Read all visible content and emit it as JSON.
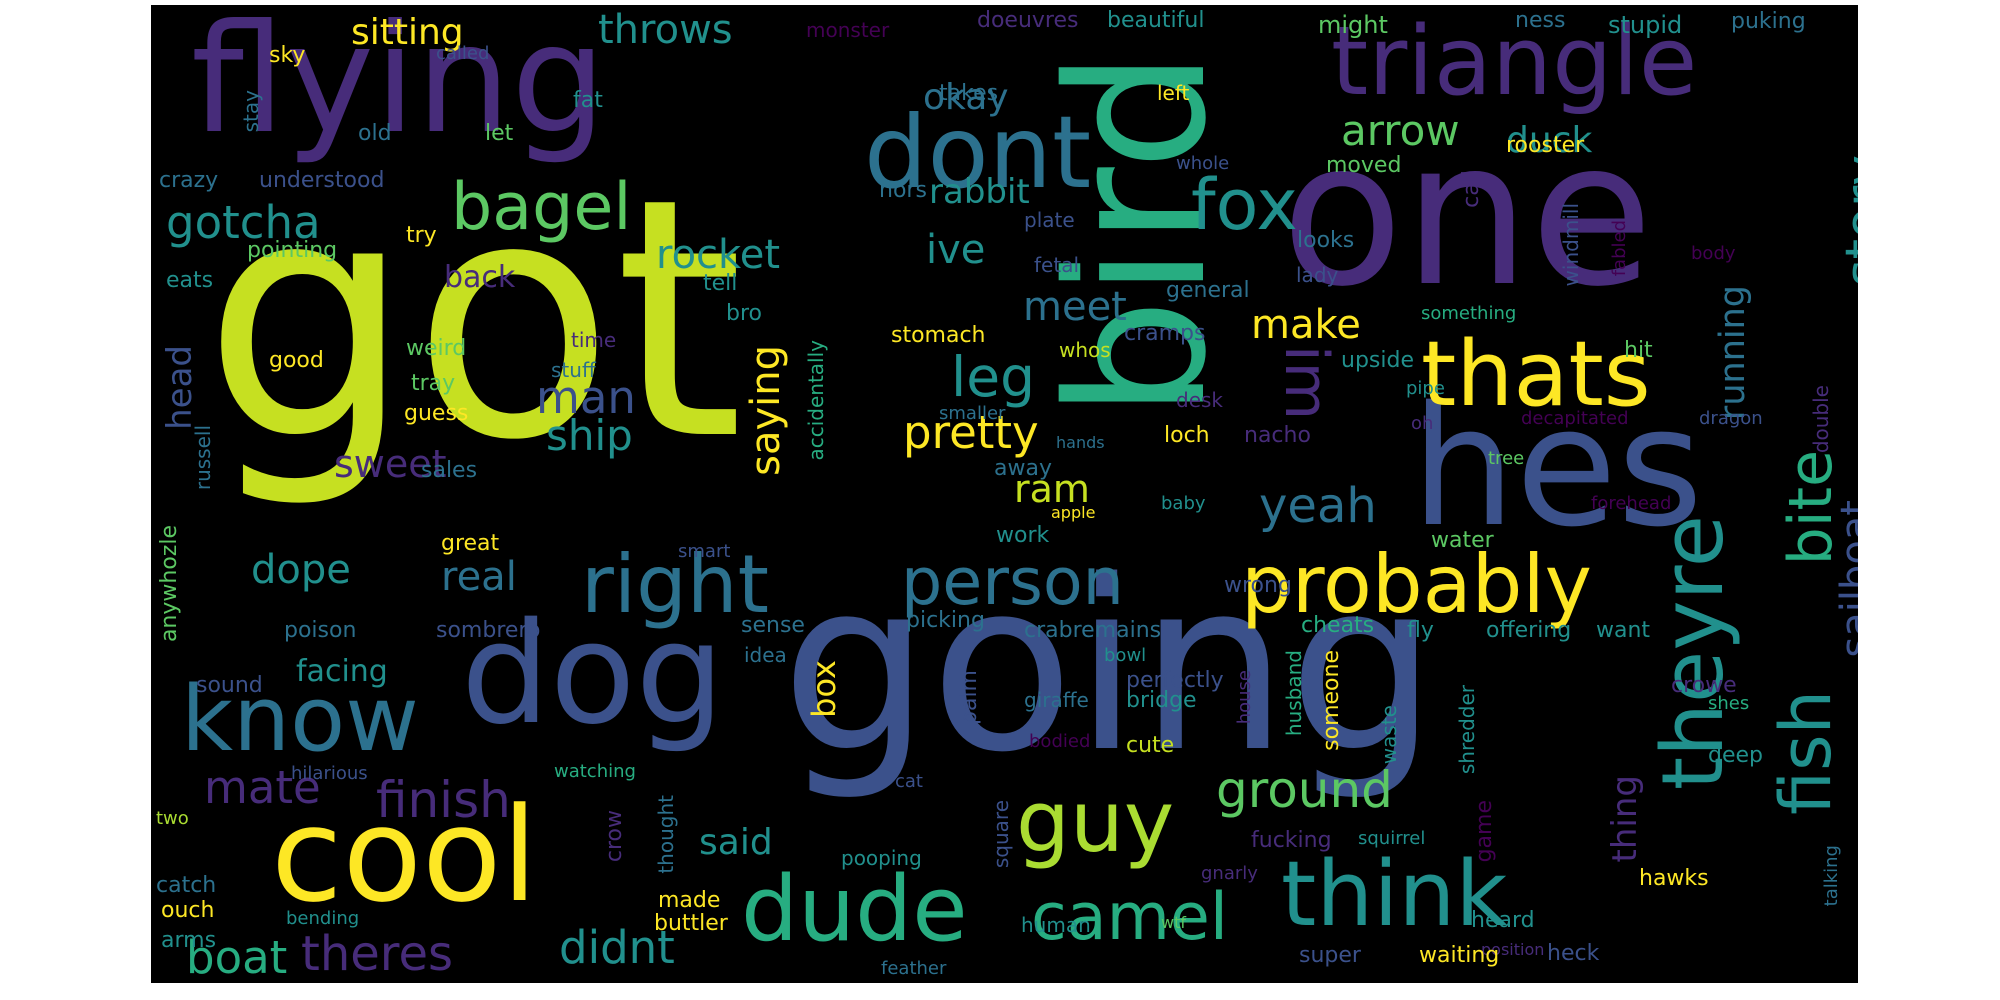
{
  "palette": {
    "v0": "#440154",
    "v1": "#472c7a",
    "v2": "#3b518b",
    "v3": "#2c718e",
    "v4": "#21908d",
    "v5": "#27ad81",
    "v6": "#5cc863",
    "v7": "#aadc32",
    "v8": "#c6e021",
    "v9": "#fde725"
  },
  "words": [
    {
      "text": "got",
      "color": "v8"
    },
    {
      "text": "going",
      "color": "v2"
    },
    {
      "text": "dog",
      "color": "v2"
    },
    {
      "text": "one",
      "color": "v1"
    },
    {
      "text": "flying",
      "color": "v1"
    },
    {
      "text": "bird",
      "color": "v5"
    },
    {
      "text": "hes",
      "color": "v2"
    },
    {
      "text": "cool",
      "color": "v9"
    },
    {
      "text": "triangle",
      "color": "v1"
    },
    {
      "text": "theyre",
      "color": "v4"
    },
    {
      "text": "dont",
      "color": "v3"
    },
    {
      "text": "think",
      "color": "v4"
    },
    {
      "text": "thats",
      "color": "v9"
    },
    {
      "text": "know",
      "color": "v3"
    },
    {
      "text": "dude",
      "color": "v5"
    },
    {
      "text": "probably",
      "color": "v9"
    },
    {
      "text": "right",
      "color": "v3"
    },
    {
      "text": "person",
      "color": "v3"
    },
    {
      "text": "guy",
      "color": "v7"
    },
    {
      "text": "fish",
      "color": "v4"
    },
    {
      "text": "bite",
      "color": "v5"
    },
    {
      "text": "camel",
      "color": "v5"
    },
    {
      "text": "bagel",
      "color": "v6"
    },
    {
      "text": "fox",
      "color": "v4"
    },
    {
      "text": "im",
      "color": "v1"
    },
    {
      "text": "ground",
      "color": "v6"
    },
    {
      "text": "finish",
      "color": "v1"
    },
    {
      "text": "mate",
      "color": "v1"
    },
    {
      "text": "theres",
      "color": "v1"
    },
    {
      "text": "boat",
      "color": "v5"
    },
    {
      "text": "didnt",
      "color": "v4"
    },
    {
      "text": "leg",
      "color": "v4"
    },
    {
      "text": "story",
      "color": "v4"
    },
    {
      "text": "sailboat",
      "color": "v2"
    },
    {
      "text": "yeah",
      "color": "v3"
    },
    {
      "text": "gotcha",
      "color": "v4"
    },
    {
      "text": "rocket",
      "color": "v4"
    },
    {
      "text": "arrow",
      "color": "v6"
    },
    {
      "text": "throws",
      "color": "v4"
    },
    {
      "text": "sitting",
      "color": "v9"
    },
    {
      "text": "okay",
      "color": "v3"
    },
    {
      "text": "ive",
      "color": "v4"
    },
    {
      "text": "meet",
      "color": "v3"
    },
    {
      "text": "make",
      "color": "v9"
    },
    {
      "text": "man",
      "color": "v2"
    },
    {
      "text": "ship",
      "color": "v4"
    },
    {
      "text": "pretty",
      "color": "v9"
    },
    {
      "text": "saying",
      "color": "v9"
    },
    {
      "text": "running",
      "color": "v3"
    },
    {
      "text": "duck",
      "color": "v4"
    },
    {
      "text": "rabbit",
      "color": "v4"
    },
    {
      "text": "sweet",
      "color": "v1"
    },
    {
      "text": "real",
      "color": "v3"
    },
    {
      "text": "dope",
      "color": "v4"
    },
    {
      "text": "ram",
      "color": "v8"
    },
    {
      "text": "said",
      "color": "v4"
    },
    {
      "text": "head",
      "color": "v2"
    },
    {
      "text": "box",
      "color": "v9"
    },
    {
      "text": "thing",
      "color": "v1"
    },
    {
      "text": "facing",
      "color": "v4"
    },
    {
      "text": "back",
      "color": "v1"
    },
    {
      "text": "monster",
      "color": "v0"
    },
    {
      "text": "doeuvres",
      "color": "v1"
    },
    {
      "text": "beautiful",
      "color": "v4"
    },
    {
      "text": "might",
      "color": "v6"
    },
    {
      "text": "ness",
      "color": "v3"
    },
    {
      "text": "stupid",
      "color": "v4"
    },
    {
      "text": "puking",
      "color": "v3"
    },
    {
      "text": "sky",
      "color": "v9"
    },
    {
      "text": "called",
      "color": "v2"
    },
    {
      "text": "stay",
      "color": "v3"
    },
    {
      "text": "fat",
      "color": "v4"
    },
    {
      "text": "old",
      "color": "v3"
    },
    {
      "text": "let",
      "color": "v6"
    },
    {
      "text": "takes",
      "color": "v3"
    },
    {
      "text": "left",
      "color": "v9"
    },
    {
      "text": "rooster",
      "color": "v9"
    },
    {
      "text": "moved",
      "color": "v6"
    },
    {
      "text": "whole",
      "color": "v2"
    },
    {
      "text": "crazy",
      "color": "v3"
    },
    {
      "text": "understood",
      "color": "v2"
    },
    {
      "text": "hors",
      "color": "v3"
    },
    {
      "text": "call",
      "color": "v1"
    },
    {
      "text": "windmill",
      "color": "v2"
    },
    {
      "text": "fabled",
      "color": "v0"
    },
    {
      "text": "body",
      "color": "v0"
    },
    {
      "text": "pointing",
      "color": "v6"
    },
    {
      "text": "try",
      "color": "v9"
    },
    {
      "text": "eats",
      "color": "v4"
    },
    {
      "text": "plate",
      "color": "v2"
    },
    {
      "text": "looks",
      "color": "v3"
    },
    {
      "text": "fetal",
      "color": "v2"
    },
    {
      "text": "lady",
      "color": "v2"
    },
    {
      "text": "tell",
      "color": "v4"
    },
    {
      "text": "bro",
      "color": "v4"
    },
    {
      "text": "general",
      "color": "v3"
    },
    {
      "text": "something",
      "color": "v5"
    },
    {
      "text": "time",
      "color": "v1"
    },
    {
      "text": "stomach",
      "color": "v9"
    },
    {
      "text": "whos",
      "color": "v8"
    },
    {
      "text": "cramps",
      "color": "v2"
    },
    {
      "text": "hit",
      "color": "v6"
    },
    {
      "text": "good",
      "color": "v9"
    },
    {
      "text": "weird",
      "color": "v6"
    },
    {
      "text": "stuff",
      "color": "v3"
    },
    {
      "text": "tray",
      "color": "v6"
    },
    {
      "text": "upside",
      "color": "v4"
    },
    {
      "text": "guess",
      "color": "v9"
    },
    {
      "text": "accidentally",
      "color": "v5"
    },
    {
      "text": "smaller",
      "color": "v3"
    },
    {
      "text": "desk",
      "color": "v1"
    },
    {
      "text": "pipe",
      "color": "v4"
    },
    {
      "text": "decapitated",
      "color": "v0"
    },
    {
      "text": "dragon",
      "color": "v2"
    },
    {
      "text": "russell",
      "color": "v3"
    },
    {
      "text": "nacho",
      "color": "v1"
    },
    {
      "text": "oh",
      "color": "v1"
    },
    {
      "text": "double",
      "color": "v1"
    },
    {
      "text": "loch",
      "color": "v9"
    },
    {
      "text": "tree",
      "color": "v6"
    },
    {
      "text": "hands",
      "color": "v3"
    },
    {
      "text": "away",
      "color": "v3"
    },
    {
      "text": "sales",
      "color": "v3"
    },
    {
      "text": "baby",
      "color": "v4"
    },
    {
      "text": "forehead",
      "color": "v0"
    },
    {
      "text": "apple",
      "color": "v9"
    },
    {
      "text": "water",
      "color": "v6"
    },
    {
      "text": "great",
      "color": "v9"
    },
    {
      "text": "anywhozle",
      "color": "v6"
    },
    {
      "text": "work",
      "color": "v4"
    },
    {
      "text": "smart",
      "color": "v2"
    },
    {
      "text": "wrong",
      "color": "v2"
    },
    {
      "text": "poison",
      "color": "v3"
    },
    {
      "text": "sombrero",
      "color": "v2"
    },
    {
      "text": "sense",
      "color": "v3"
    },
    {
      "text": "picking",
      "color": "v3"
    },
    {
      "text": "crabremains",
      "color": "v3"
    },
    {
      "text": "cheats",
      "color": "v5"
    },
    {
      "text": "fly",
      "color": "v4"
    },
    {
      "text": "offering",
      "color": "v4"
    },
    {
      "text": "want",
      "color": "v4"
    },
    {
      "text": "idea",
      "color": "v3"
    },
    {
      "text": "sound",
      "color": "v2"
    },
    {
      "text": "bowl",
      "color": "v4"
    },
    {
      "text": "perfectly",
      "color": "v2"
    },
    {
      "text": "husband",
      "color": "v5"
    },
    {
      "text": "someone",
      "color": "v9"
    },
    {
      "text": "crowe",
      "color": "v1"
    },
    {
      "text": "bridge",
      "color": "v4"
    },
    {
      "text": "house",
      "color": "v1"
    },
    {
      "text": "shes",
      "color": "v5"
    },
    {
      "text": "palm",
      "color": "v2"
    },
    {
      "text": "giraffe",
      "color": "v3"
    },
    {
      "text": "shredder",
      "color": "v4"
    },
    {
      "text": "waste",
      "color": "v4"
    },
    {
      "text": "deep",
      "color": "v4"
    },
    {
      "text": "cute",
      "color": "v8"
    },
    {
      "text": "bodied",
      "color": "v0"
    },
    {
      "text": "cat",
      "color": "v2"
    },
    {
      "text": "hilarious",
      "color": "v2"
    },
    {
      "text": "watching",
      "color": "v5"
    },
    {
      "text": "two",
      "color": "v7"
    },
    {
      "text": "thought",
      "color": "v3"
    },
    {
      "text": "crow",
      "color": "v1"
    },
    {
      "text": "fucking",
      "color": "v1"
    },
    {
      "text": "squirrel",
      "color": "v4"
    },
    {
      "text": "game",
      "color": "v0"
    },
    {
      "text": "pooping",
      "color": "v4"
    },
    {
      "text": "square",
      "color": "v2"
    },
    {
      "text": "gnarly",
      "color": "v1"
    },
    {
      "text": "hawks",
      "color": "v9"
    },
    {
      "text": "catch",
      "color": "v3"
    },
    {
      "text": "ouch",
      "color": "v9"
    },
    {
      "text": "bending",
      "color": "v4"
    },
    {
      "text": "made",
      "color": "v9"
    },
    {
      "text": "arms",
      "color": "v4"
    },
    {
      "text": "buttler",
      "color": "v9"
    },
    {
      "text": "human",
      "color": "v4"
    },
    {
      "text": "wtf",
      "color": "v6"
    },
    {
      "text": "heard",
      "color": "v4"
    },
    {
      "text": "position",
      "color": "v1"
    },
    {
      "text": "talking",
      "color": "v3"
    },
    {
      "text": "super",
      "color": "v2"
    },
    {
      "text": "waiting",
      "color": "v9"
    },
    {
      "text": "heck",
      "color": "v2"
    },
    {
      "text": "feather",
      "color": "v3"
    }
  ]
}
